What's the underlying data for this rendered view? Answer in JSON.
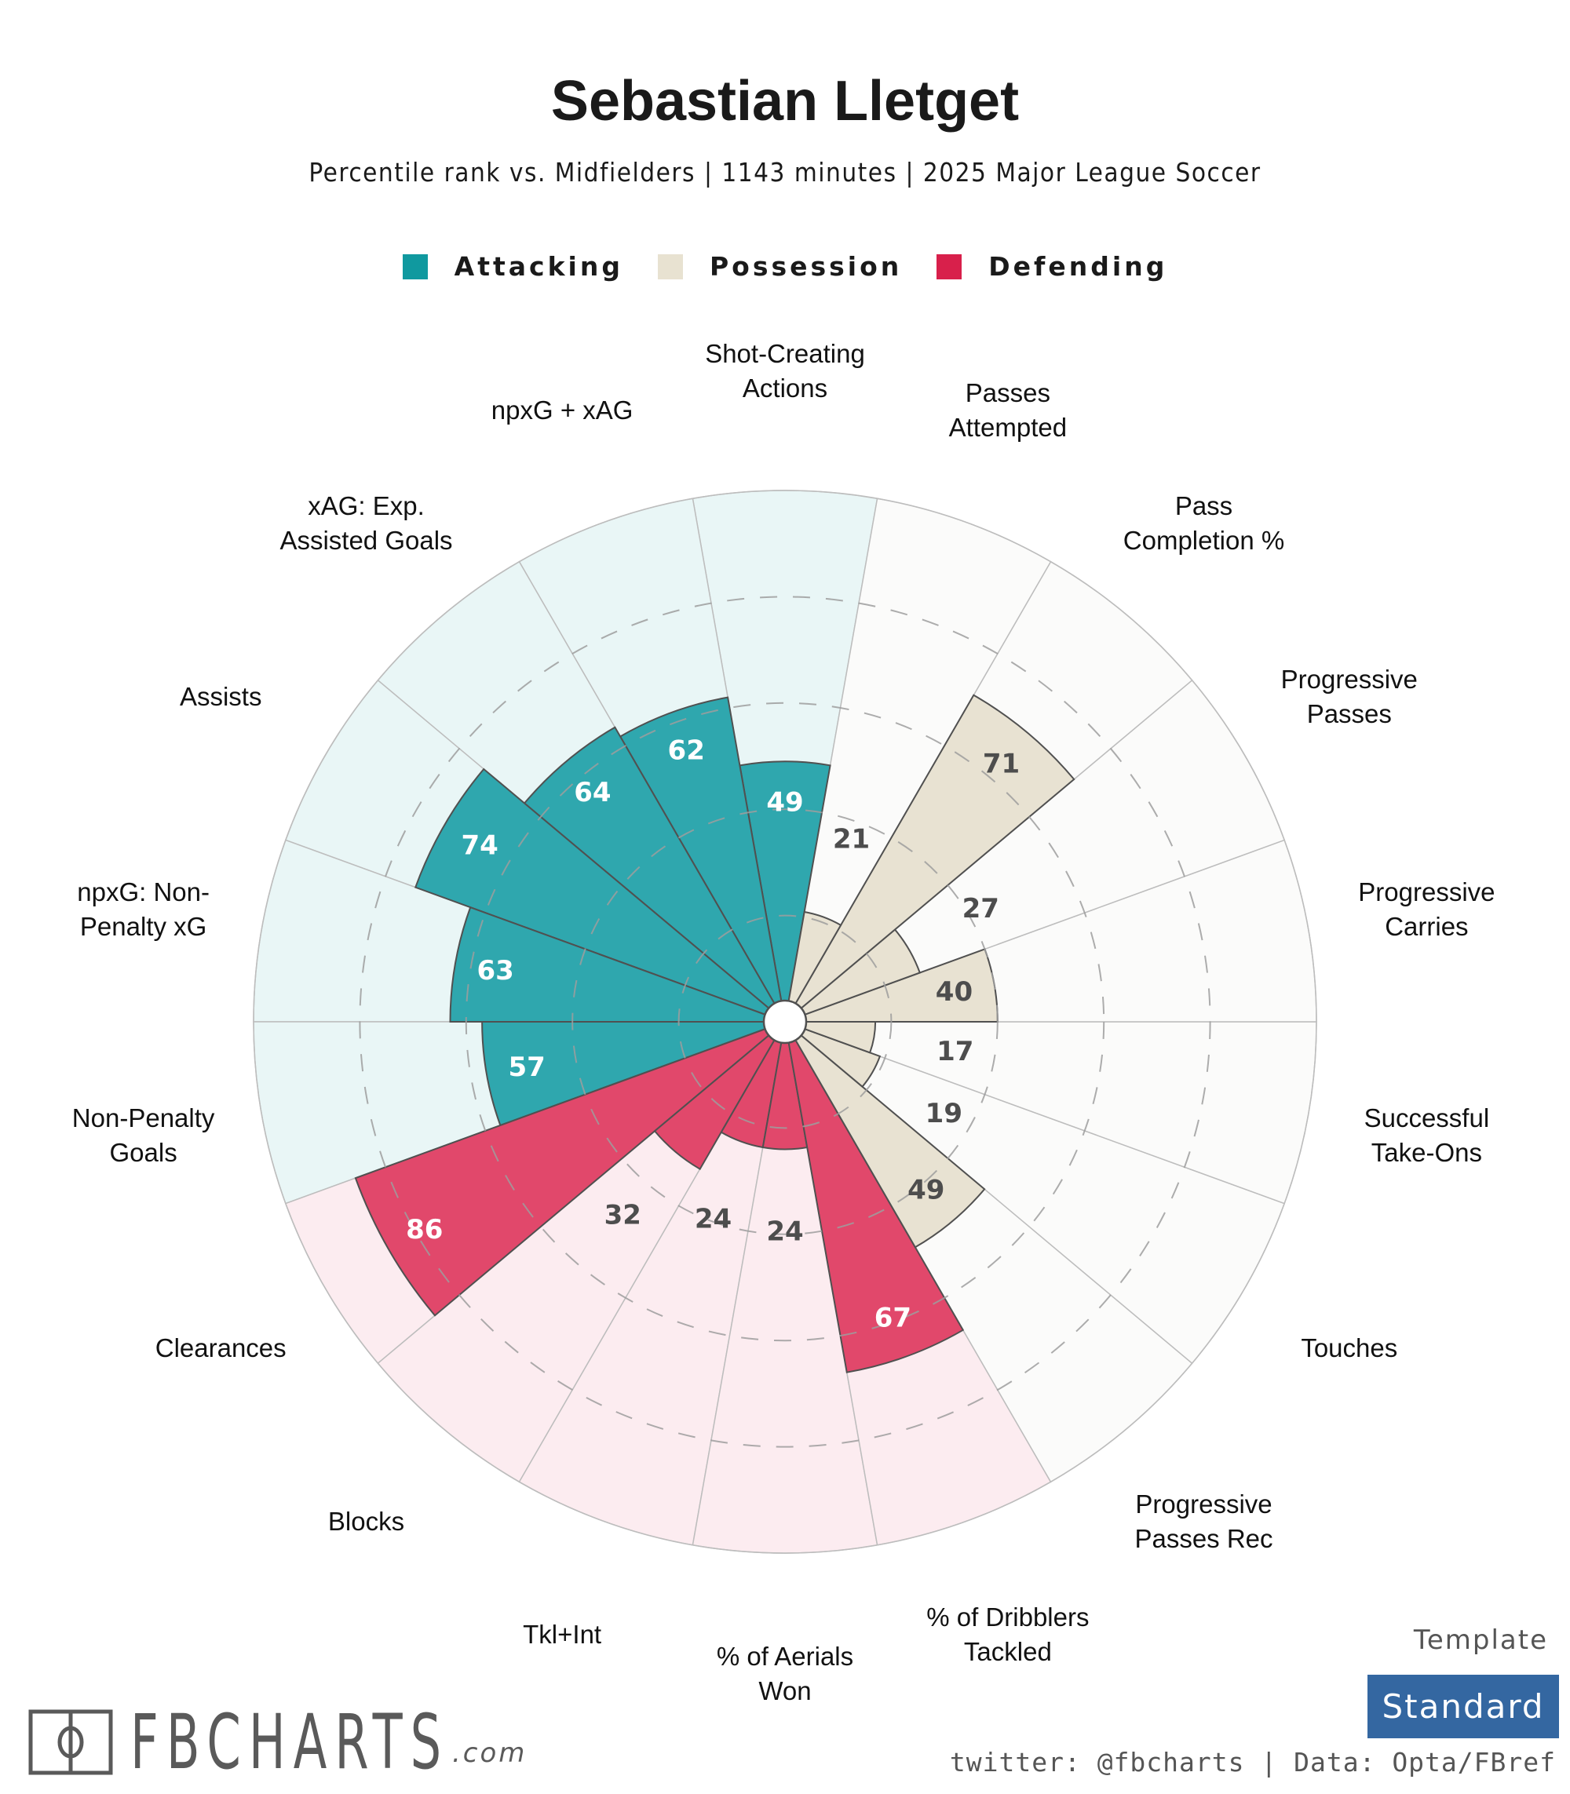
{
  "header": {
    "title": "Sebastian Lletget",
    "subtitle": "Percentile rank vs. Midfielders | 1143 minutes | 2025 Major League Soccer"
  },
  "legend": [
    {
      "label": "Attacking",
      "color": "#10999f"
    },
    {
      "label": "Possession",
      "color": "#e8e2d1"
    },
    {
      "label": "Defending",
      "color": "#d8204b"
    }
  ],
  "chart_data": {
    "type": "polar-bar",
    "title": "Sebastian Lletget",
    "subtitle": "Percentile rank vs. Midfielders | 1143 minutes | 2025 Major League Soccer",
    "rlim": [
      0,
      100
    ],
    "gridlines": [
      20,
      40,
      60,
      80
    ],
    "legend_position": "top-center",
    "groups": {
      "Attacking": {
        "bar_color": "#2fa7ae",
        "bg_color": "#e9f6f6",
        "text_color": "#ffffff"
      },
      "Possession": {
        "bar_color": "#e8e2d2",
        "bg_color": "#fbfbfa",
        "text_color": "#4d4d4d"
      },
      "Defending": {
        "bar_color": "#e1486b",
        "bg_color": "#fcecf0",
        "text_color": "#ffffff"
      }
    },
    "categories": [
      {
        "label": "Shot-Creating\nActions",
        "value": 49,
        "group": "Attacking"
      },
      {
        "label": "npxG + xAG",
        "value": 62,
        "group": "Attacking"
      },
      {
        "label": "xAG: Exp.\nAssisted Goals",
        "value": 64,
        "group": "Attacking"
      },
      {
        "label": "Assists",
        "value": 74,
        "group": "Attacking"
      },
      {
        "label": "npxG: Non-\nPenalty xG",
        "value": 63,
        "group": "Attacking"
      },
      {
        "label": "Non-Penalty\nGoals",
        "value": 57,
        "group": "Attacking"
      },
      {
        "label": "Clearances",
        "value": 86,
        "group": "Defending"
      },
      {
        "label": "Blocks",
        "value": 32,
        "group": "Defending"
      },
      {
        "label": "Tkl+Int",
        "value": 24,
        "group": "Defending"
      },
      {
        "label": "% of Aerials\nWon",
        "value": 24,
        "group": "Defending"
      },
      {
        "label": "% of Dribblers\nTackled",
        "value": 67,
        "group": "Defending"
      },
      {
        "label": "Progressive\nPasses Rec",
        "value": 49,
        "group": "Possession"
      },
      {
        "label": "Touches",
        "value": 19,
        "group": "Possession"
      },
      {
        "label": "Successful\nTake-Ons",
        "value": 17,
        "group": "Possession"
      },
      {
        "label": "Progressive\nCarries",
        "value": 40,
        "group": "Possession"
      },
      {
        "label": "Progressive\nPasses",
        "value": 27,
        "group": "Possession"
      },
      {
        "label": "Pass\nCompletion %",
        "value": 71,
        "group": "Possession"
      },
      {
        "label": "Passes\nAttempted",
        "value": 21,
        "group": "Possession"
      }
    ]
  },
  "footer": {
    "logo_text": "FBCHARTS",
    "logo_suffix": ".com",
    "template_label": "Template",
    "template_value": "Standard",
    "credits": "twitter: @fbcharts | Data: Opta/FBref"
  }
}
